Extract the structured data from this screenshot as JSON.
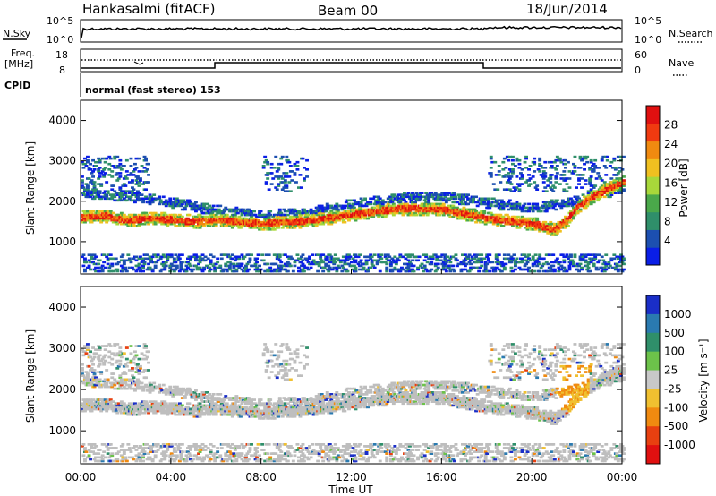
{
  "header": {
    "station": "Hankasalmi (fitACF)",
    "beam": "Beam 00",
    "date": "18/Jun/2014"
  },
  "strips": {
    "nsky_label": "N.Sky",
    "nsearch_label": "N.Search",
    "nsky_ticks": [
      "10^5",
      "10^0"
    ],
    "nsearch_ticks": [
      "10^5",
      "10^0"
    ],
    "freq_label_1": "Freq.",
    "freq_label_2": "[MHz]",
    "freq_ticks": [
      "18",
      "8"
    ],
    "nave_label": "Nave",
    "nave_ticks": [
      "60",
      "0"
    ],
    "cpid_label": "CPID",
    "cpid_text": "normal (fast stereo) 153"
  },
  "colors": {
    "power_scale": [
      "#0a1ee6",
      "#1c4fb0",
      "#2f8f6a",
      "#4aa84a",
      "#a8d83a",
      "#f0c020",
      "#f08a10",
      "#f03a10",
      "#e01010"
    ],
    "velocity_scale": [
      "#1a2ec8",
      "#2a7ab0",
      "#2f8f6a",
      "#6cc24a",
      "#c8c8c8",
      "#f0c030",
      "#f08a10",
      "#e84010",
      "#e01010"
    ],
    "ground_scatter": "#bebebe"
  },
  "chart_data": [
    {
      "type": "heatmap",
      "panel": "power",
      "ylabel": "Slant Range [km]",
      "ylim": [
        200,
        4500
      ],
      "yticks": [
        "4000",
        "3000",
        "2000",
        "1000"
      ],
      "xlim_hours": [
        0,
        24
      ],
      "colorbar_label": "Power [dB]",
      "colorbar_ticks": [
        "28",
        "24",
        "20",
        "16",
        "12",
        "8",
        "4"
      ],
      "bands": [
        {
          "name": "main",
          "points": [
            [
              0,
              1580
            ],
            [
              1,
              1620
            ],
            [
              2,
              1500
            ],
            [
              3,
              1560
            ],
            [
              4,
              1520
            ],
            [
              5,
              1480
            ],
            [
              6,
              1520
            ],
            [
              8,
              1420
            ],
            [
              10,
              1500
            ],
            [
              12,
              1650
            ],
            [
              14,
              1800
            ],
            [
              16,
              1780
            ],
            [
              18,
              1560
            ],
            [
              19,
              1480
            ],
            [
              20,
              1420
            ],
            [
              21,
              1280
            ],
            [
              21.5,
              1500
            ],
            [
              22,
              1850
            ],
            [
              23,
              2200
            ],
            [
              24,
              2450
            ]
          ]
        },
        {
          "name": "upper",
          "points": [
            [
              0,
              2200
            ],
            [
              2,
              2100
            ],
            [
              4,
              1950
            ],
            [
              6,
              1750
            ],
            [
              8,
              1620
            ],
            [
              10,
              1700
            ],
            [
              12,
              1900
            ],
            [
              14,
              2050
            ],
            [
              16,
              2100
            ],
            [
              18,
              1950
            ],
            [
              20,
              1800
            ],
            [
              22,
              2000
            ],
            [
              24,
              2300
            ]
          ]
        }
      ]
    },
    {
      "type": "heatmap",
      "panel": "velocity",
      "ylabel": "Slant Range [km]",
      "ylim": [
        200,
        4500
      ],
      "yticks": [
        "4000",
        "3000",
        "2000",
        "1000"
      ],
      "xlim_hours": [
        0,
        24
      ],
      "xticks": [
        "00:00",
        "04:00",
        "08:00",
        "12:00",
        "16:00",
        "20:00",
        "00:00"
      ],
      "xlabel": "Time UT",
      "colorbar_label": "Velocity [m s⁻¹]",
      "colorbar_ticks": [
        "1000",
        "500",
        "100",
        "25",
        "-25",
        "-100",
        "-500",
        "-1000"
      ]
    }
  ]
}
